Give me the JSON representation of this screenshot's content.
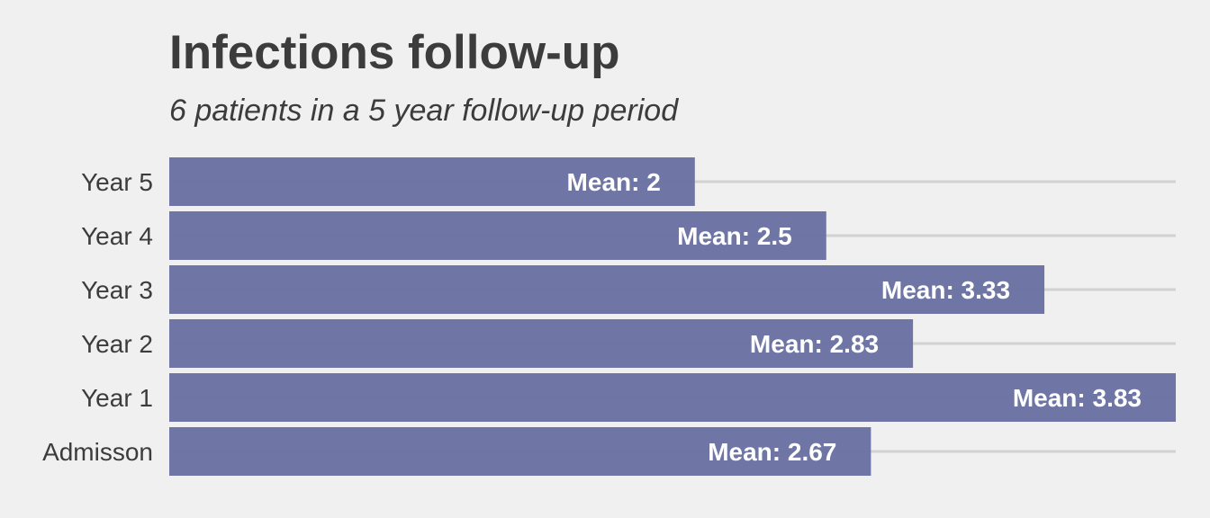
{
  "chart_data": {
    "type": "bar",
    "orientation": "horizontal",
    "title": "Infections follow-up",
    "subtitle": "6 patients in a 5 year follow-up period",
    "categories": [
      "Admisson",
      "Year 1",
      "Year 2",
      "Year 3",
      "Year 4",
      "Year 5"
    ],
    "values": [
      2.67,
      3.83,
      2.83,
      3.33,
      2.5,
      2
    ],
    "data_labels": [
      "Mean: 2.67",
      "Mean: 3.83",
      "Mean: 2.83",
      "Mean: 3.33",
      "Mean: 2.5",
      "Mean: 2"
    ],
    "xlim": [
      0,
      3.83
    ],
    "xlabel": "",
    "ylabel": "",
    "grid": "horizontal",
    "legend": "none",
    "colors": {
      "bar": "#6a72a3",
      "grid": "#d2d2d2",
      "background": "#f0f0f0",
      "text": "#3c3c3c",
      "label": "#ffffff"
    }
  }
}
